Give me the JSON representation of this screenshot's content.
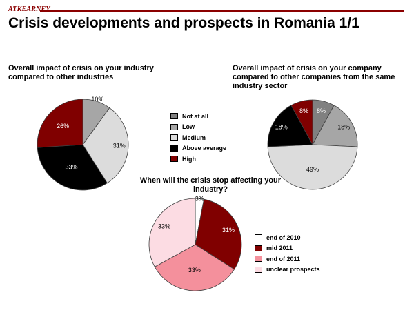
{
  "header": {
    "brand": "ATKEARNEY",
    "title": "Crisis developments and prospects in Romania 1/1"
  },
  "colors": {
    "not_at_all": "#808080",
    "low": "#a6a6a6",
    "medium": "#dcdcdc",
    "above_average": "#000000",
    "high": "#800000",
    "end_2010": "#ffffff",
    "mid_2011": "#800000",
    "end_2011": "#f4909c",
    "unclear": "#fcdce3"
  },
  "chart_data": [
    {
      "type": "pie",
      "title": "Overall impact of crisis on your industry compared to other industries",
      "slices": [
        {
          "label": "Low",
          "value": 10,
          "display": "10%",
          "color": "#a6a6a6",
          "text_color": "#000000"
        },
        {
          "label": "Medium",
          "value": 31,
          "display": "31%",
          "color": "#dcdcdc",
          "text_color": "#000000"
        },
        {
          "label": "Above average",
          "value": 33,
          "display": "33%",
          "color": "#000000",
          "text_color": "#ffffff"
        },
        {
          "label": "High",
          "value": 26,
          "display": "26%",
          "color": "#800000",
          "text_color": "#ffffff"
        }
      ],
      "legend": [
        {
          "label": "Not at all",
          "color": "#808080"
        },
        {
          "label": "Low",
          "color": "#a6a6a6"
        },
        {
          "label": "Medium",
          "color": "#dcdcdc"
        },
        {
          "label": "Above average",
          "color": "#000000"
        },
        {
          "label": "High",
          "color": "#800000"
        }
      ]
    },
    {
      "type": "pie",
      "title": "Overall impact of crisis on your company compared to other companies from the same industry sector",
      "slices": [
        {
          "label": "Not at all",
          "value": 8,
          "display": "8%",
          "color": "#808080",
          "text_color": "#ffffff"
        },
        {
          "label": "Low",
          "value": 18,
          "display": "18%",
          "color": "#a6a6a6",
          "text_color": "#000000"
        },
        {
          "label": "Medium",
          "value": 49,
          "display": "49%",
          "color": "#dcdcdc",
          "text_color": "#000000"
        },
        {
          "label": "Above average",
          "value": 18,
          "display": "18%",
          "color": "#000000",
          "text_color": "#ffffff"
        },
        {
          "label": "High",
          "value": 8,
          "display": "8%",
          "color": "#800000",
          "text_color": "#ffffff"
        }
      ]
    },
    {
      "type": "pie",
      "title": "When will the crisis stop affecting your industry?",
      "slices": [
        {
          "label": "end of 2010",
          "value": 3,
          "display": "3%",
          "color": "#ffffff",
          "text_color": "#000000"
        },
        {
          "label": "mid 2011",
          "value": 31,
          "display": "31%",
          "color": "#800000",
          "text_color": "#ffffff"
        },
        {
          "label": "end of 2011",
          "value": 33,
          "display": "33%",
          "color": "#f4909c",
          "text_color": "#000000"
        },
        {
          "label": "unclear prospects",
          "value": 33,
          "display": "33%",
          "color": "#fcdce3",
          "text_color": "#000000"
        }
      ],
      "legend": [
        {
          "label": "end of 2010",
          "color": "#ffffff"
        },
        {
          "label": "mid 2011",
          "color": "#800000"
        },
        {
          "label": "end of 2011",
          "color": "#f4909c"
        },
        {
          "label": "unclear prospects",
          "color": "#fcdce3"
        }
      ]
    }
  ]
}
